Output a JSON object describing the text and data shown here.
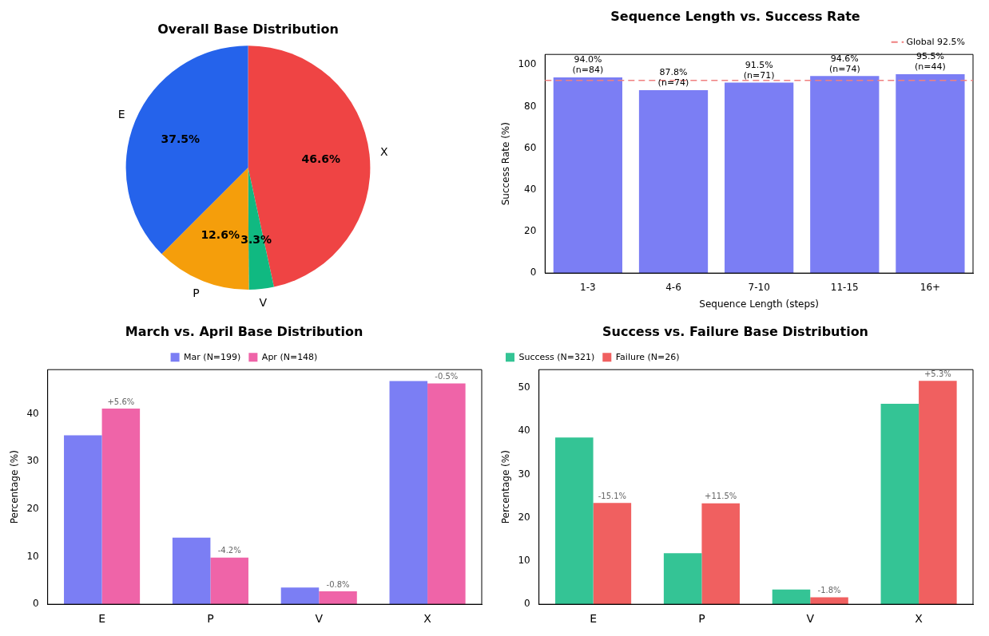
{
  "chart_data": [
    {
      "type": "pie",
      "title": "Overall Base Distribution",
      "categories": [
        "X",
        "V",
        "P",
        "E"
      ],
      "values": [
        46.6,
        3.3,
        12.6,
        37.5
      ],
      "colors": [
        "#ef4444",
        "#10b981",
        "#f59e0b",
        "#2563eb"
      ],
      "value_labels": [
        "46.6%",
        "3.3%",
        "12.6%",
        "37.5%"
      ]
    },
    {
      "type": "bar",
      "title": "Sequence Length vs. Success Rate",
      "xlabel": "Sequence Length (steps)",
      "ylabel": "Success Rate (%)",
      "categories": [
        "1-3",
        "4-6",
        "7-10",
        "11-15",
        "16+"
      ],
      "series": [
        {
          "color": "#7b7ef4",
          "values": [
            94.0,
            87.8,
            91.5,
            94.6,
            95.5
          ],
          "value_labels": [
            "94.0%\n(n=84)",
            "87.8%\n(n=74)",
            "91.5%\n(n=71)",
            "94.6%\n(n=74)",
            "95.5%\n(n=44)"
          ]
        }
      ],
      "ylim": [
        0,
        105
      ],
      "yticks": [
        0,
        20,
        40,
        60,
        80,
        100
      ],
      "grid": false,
      "legend": "top right",
      "ref_lines": [
        {
          "axis": "y",
          "value": 92.5,
          "label": "Global 92.5%",
          "color": "#f08080",
          "line_style": "dashed"
        }
      ]
    },
    {
      "type": "bar",
      "title": "March vs. April Base Distribution",
      "ylabel": "Percentage (%)",
      "categories": [
        "E",
        "P",
        "V",
        "X"
      ],
      "series": [
        {
          "name": "Mar (N=199)",
          "color": "#7b7ef4",
          "values": [
            35.5,
            14.0,
            3.5,
            46.9
          ]
        },
        {
          "name": "Apr (N=148)",
          "color": "#ef64a8",
          "values": [
            41.1,
            9.8,
            2.7,
            46.4
          ]
        }
      ],
      "annotations": [
        {
          "text": "+5.6%",
          "x": "E",
          "y": 41.1
        },
        {
          "text": "-4.2%",
          "x": "P",
          "y": 9.8
        },
        {
          "text": "-0.8%",
          "x": "V",
          "y": 2.7
        },
        {
          "text": "-0.5%",
          "x": "X",
          "y": 46.4
        }
      ],
      "ylim": [
        0,
        49.3
      ],
      "yticks": [
        0,
        10,
        20,
        30,
        40
      ],
      "grid": false,
      "legend": "top"
    },
    {
      "type": "bar",
      "title": "Success vs. Failure Base Distribution",
      "ylabel": "Percentage (%)",
      "categories": [
        "E",
        "P",
        "V",
        "X"
      ],
      "series": [
        {
          "name": "Success (N=321)",
          "color": "#34c495",
          "values": [
            38.5,
            11.8,
            3.4,
            46.3
          ]
        },
        {
          "name": "Failure (N=26)",
          "color": "#f06060",
          "values": [
            23.4,
            23.3,
            1.6,
            51.6
          ]
        }
      ],
      "annotations": [
        {
          "text": "-15.1%",
          "x": "E",
          "y": 23.4
        },
        {
          "text": "+11.5%",
          "x": "P",
          "y": 23.3
        },
        {
          "text": "-1.8%",
          "x": "V",
          "y": 1.6
        },
        {
          "text": "+5.3%",
          "x": "X",
          "y": 51.6
        }
      ],
      "ylim": [
        0,
        54.2
      ],
      "yticks": [
        0,
        10,
        20,
        30,
        40,
        50
      ],
      "grid": false,
      "legend": "top left"
    }
  ]
}
